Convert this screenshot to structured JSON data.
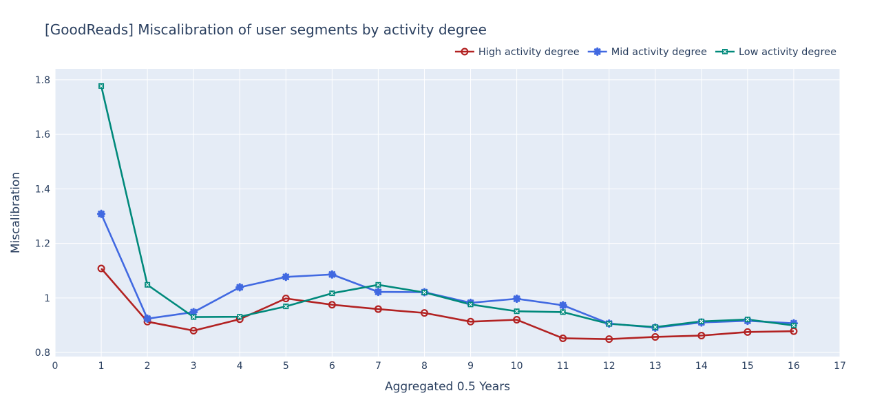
{
  "chart_data": {
    "type": "line",
    "title": "[GoodReads] Miscalibration of user segments by activity degree",
    "xlabel": "Aggregated 0.5 Years",
    "ylabel": "Miscalibration",
    "xlim": [
      0,
      17
    ],
    "ylim": [
      0.785,
      1.84
    ],
    "x_ticks": [
      "0",
      "1",
      "2",
      "3",
      "4",
      "5",
      "6",
      "7",
      "8",
      "9",
      "10",
      "11",
      "12",
      "13",
      "14",
      "15",
      "16",
      "17"
    ],
    "x_tick_values": [
      0,
      1,
      2,
      3,
      4,
      5,
      6,
      7,
      8,
      9,
      10,
      11,
      12,
      13,
      14,
      15,
      16,
      17
    ],
    "y_ticks": [
      "0.8",
      "1",
      "1.2",
      "1.4",
      "1.6",
      "1.8"
    ],
    "y_tick_values": [
      0.8,
      1.0,
      1.2,
      1.4,
      1.6,
      1.8
    ],
    "grid": true,
    "legend_position": "top-right",
    "x": [
      1,
      2,
      3,
      4,
      5,
      6,
      7,
      8,
      9,
      10,
      11,
      12,
      13,
      14,
      15,
      16
    ],
    "series": [
      {
        "name": "High activity degree",
        "color": "#b22222",
        "marker": "circle-open",
        "values": [
          1.108,
          0.913,
          0.88,
          0.922,
          0.998,
          0.975,
          0.959,
          0.945,
          0.913,
          0.92,
          0.852,
          0.849,
          0.857,
          0.862,
          0.875,
          0.878
        ]
      },
      {
        "name": "Mid activity degree",
        "color": "#4169e1",
        "marker": "asterisk",
        "values": [
          1.308,
          0.924,
          0.948,
          1.039,
          1.077,
          1.086,
          1.022,
          1.021,
          0.982,
          0.997,
          0.973,
          0.906,
          0.891,
          0.91,
          0.916,
          0.907
        ]
      },
      {
        "name": "Low activity degree",
        "color": "#00897b",
        "marker": "x-square",
        "values": [
          1.777,
          1.048,
          0.93,
          0.931,
          0.969,
          1.017,
          1.048,
          1.02,
          0.976,
          0.951,
          0.948,
          0.905,
          0.893,
          0.914,
          0.921,
          0.899
        ]
      }
    ]
  }
}
